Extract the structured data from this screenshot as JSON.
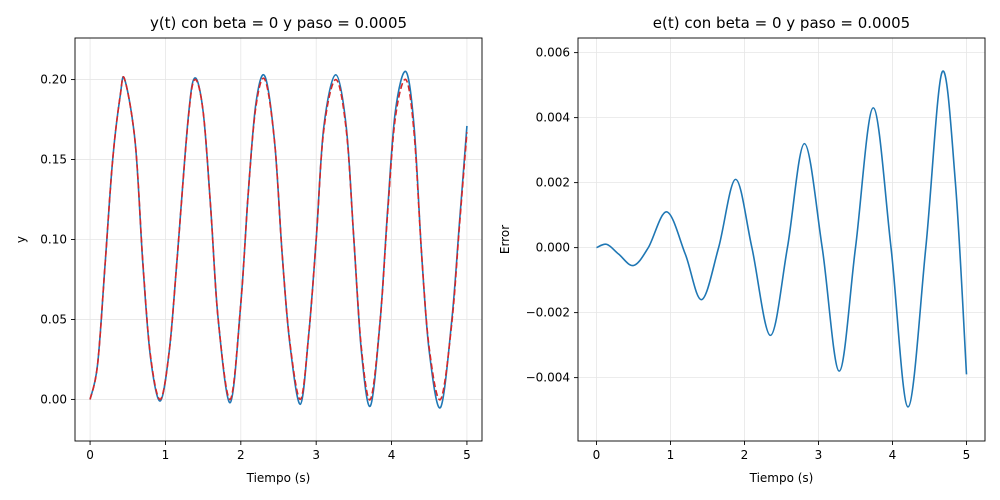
{
  "chart_data": [
    {
      "type": "line",
      "title": "y(t) con beta = 0 y paso = 0.0005",
      "xlabel": "Tiempo (s)",
      "ylabel": "y",
      "xlim": [
        -0.2,
        5.2
      ],
      "ylim": [
        -0.026,
        0.226
      ],
      "xticks": [
        0,
        1,
        2,
        3,
        4,
        5
      ],
      "yticks": [
        0.0,
        0.05,
        0.1,
        0.15,
        0.2
      ],
      "ytick_labels": [
        "0.00",
        "0.05",
        "0.10",
        "0.15",
        "0.20"
      ],
      "grid": true,
      "series": [
        {
          "style": "solid",
          "color": "#1f77b4",
          "x": [
            0.0,
            0.1,
            0.2,
            0.3,
            0.4,
            0.46,
            0.6,
            0.7,
            0.8,
            0.93,
            1.05,
            1.15,
            1.3,
            1.39,
            1.5,
            1.6,
            1.7,
            1.86,
            2.0,
            2.1,
            2.2,
            2.32,
            2.45,
            2.55,
            2.65,
            2.79,
            2.9,
            3.0,
            3.1,
            3.26,
            3.4,
            3.5,
            3.6,
            3.72,
            3.85,
            3.95,
            4.05,
            4.19,
            4.3,
            4.4,
            4.5,
            4.65,
            4.8,
            4.9,
            5.0
          ],
          "y": [
            0.0,
            0.022,
            0.085,
            0.15,
            0.19,
            0.2,
            0.16,
            0.085,
            0.027,
            -0.001,
            0.03,
            0.085,
            0.175,
            0.201,
            0.18,
            0.12,
            0.05,
            -0.002,
            0.06,
            0.13,
            0.185,
            0.202,
            0.16,
            0.09,
            0.035,
            -0.003,
            0.04,
            0.1,
            0.17,
            0.203,
            0.17,
            0.1,
            0.03,
            -0.004,
            0.05,
            0.12,
            0.18,
            0.205,
            0.17,
            0.09,
            0.03,
            -0.005,
            0.05,
            0.11,
            0.171
          ]
        },
        {
          "style": "dashed",
          "color": "#d62728",
          "x": [
            0.0,
            0.1,
            0.2,
            0.3,
            0.4,
            0.46,
            0.6,
            0.7,
            0.8,
            0.93,
            1.05,
            1.15,
            1.3,
            1.39,
            1.5,
            1.6,
            1.7,
            1.86,
            2.0,
            2.1,
            2.2,
            2.32,
            2.45,
            2.55,
            2.65,
            2.79,
            2.9,
            3.0,
            3.1,
            3.26,
            3.4,
            3.5,
            3.6,
            3.72,
            3.85,
            3.95,
            4.05,
            4.19,
            4.3,
            4.4,
            4.5,
            4.65,
            4.8,
            4.9,
            5.0
          ],
          "y": [
            0.0,
            0.022,
            0.085,
            0.15,
            0.19,
            0.2,
            0.16,
            0.086,
            0.028,
            0.0,
            0.03,
            0.085,
            0.174,
            0.2,
            0.18,
            0.12,
            0.05,
            0.0,
            0.06,
            0.13,
            0.183,
            0.2,
            0.16,
            0.09,
            0.036,
            0.0,
            0.04,
            0.1,
            0.168,
            0.2,
            0.168,
            0.1,
            0.032,
            0.0,
            0.05,
            0.118,
            0.176,
            0.2,
            0.166,
            0.09,
            0.032,
            0.0,
            0.048,
            0.108,
            0.167
          ]
        }
      ]
    },
    {
      "type": "line",
      "title": "e(t) con beta = 0 y paso = 0.0005",
      "xlabel": "Tiempo (s)",
      "ylabel": "Error",
      "xlim": [
        -0.25,
        5.25
      ],
      "ylim": [
        -0.00595,
        0.00645
      ],
      "xticks": [
        0,
        1,
        2,
        3,
        4,
        5
      ],
      "yticks": [
        -0.004,
        -0.002,
        0.0,
        0.002,
        0.004,
        0.006
      ],
      "ytick_labels": [
        "−0.004",
        "−0.002",
        "0.000",
        "0.002",
        "0.004",
        "0.006"
      ],
      "grid": true,
      "series": [
        {
          "style": "solid",
          "color": "#1f77b4",
          "x": [
            0.0,
            0.14,
            0.3,
            0.5,
            0.7,
            0.95,
            1.2,
            1.42,
            1.65,
            1.88,
            2.1,
            2.35,
            2.58,
            2.81,
            3.05,
            3.28,
            3.5,
            3.74,
            3.98,
            4.21,
            4.45,
            4.67,
            4.85,
            5.0
          ],
          "y": [
            0.0,
            0.0001,
            -0.0002,
            -0.00055,
            0.0,
            0.0011,
            -0.0002,
            -0.0016,
            0.0,
            0.0021,
            0.0,
            -0.0027,
            0.0,
            0.0032,
            0.0,
            -0.0038,
            0.0,
            0.0043,
            0.0,
            -0.0049,
            0.0,
            0.0054,
            0.002,
            -0.0039
          ]
        }
      ]
    }
  ]
}
